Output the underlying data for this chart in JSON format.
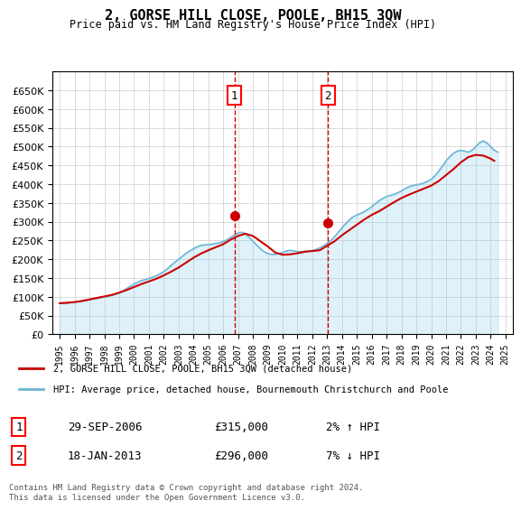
{
  "title": "2, GORSE HILL CLOSE, POOLE, BH15 3QW",
  "subtitle": "Price paid vs. HM Land Registry's House Price Index (HPI)",
  "legend_line1": "2, GORSE HILL CLOSE, POOLE, BH15 3QW (detached house)",
  "legend_line2": "HPI: Average price, detached house, Bournemouth Christchurch and Poole",
  "footnote": "Contains HM Land Registry data © Crown copyright and database right 2024.\nThis data is licensed under the Open Government Licence v3.0.",
  "sale1_label": "1",
  "sale1_date": "29-SEP-2006",
  "sale1_price": "£315,000",
  "sale1_hpi": "2% ↑ HPI",
  "sale2_label": "2",
  "sale2_date": "18-JAN-2013",
  "sale2_price": "£296,000",
  "sale2_hpi": "7% ↓ HPI",
  "hpi_color": "#add8e6",
  "price_color": "#cc0000",
  "sale_marker_color": "#cc0000",
  "dashed_line_color": "#cc0000",
  "background_color": "#ffffff",
  "plot_bg_color": "#ffffff",
  "grid_color": "#cccccc",
  "sale1_x": 2006.75,
  "sale2_x": 2013.05,
  "ylim_min": 0,
  "ylim_max": 700000,
  "yticks": [
    0,
    50000,
    100000,
    150000,
    200000,
    250000,
    300000,
    350000,
    400000,
    450000,
    500000,
    550000,
    600000,
    650000
  ],
  "xlim_min": 1994.5,
  "xlim_max": 2025.5,
  "hpi_data_x": [
    1995,
    1995.25,
    1995.5,
    1995.75,
    1996,
    1996.25,
    1996.5,
    1996.75,
    1997,
    1997.25,
    1997.5,
    1997.75,
    1998,
    1998.25,
    1998.5,
    1998.75,
    1999,
    1999.25,
    1999.5,
    1999.75,
    2000,
    2000.25,
    2000.5,
    2000.75,
    2001,
    2001.25,
    2001.5,
    2001.75,
    2002,
    2002.25,
    2002.5,
    2002.75,
    2003,
    2003.25,
    2003.5,
    2003.75,
    2004,
    2004.25,
    2004.5,
    2004.75,
    2005,
    2005.25,
    2005.5,
    2005.75,
    2006,
    2006.25,
    2006.5,
    2006.75,
    2007,
    2007.25,
    2007.5,
    2007.75,
    2008,
    2008.25,
    2008.5,
    2008.75,
    2009,
    2009.25,
    2009.5,
    2009.75,
    2010,
    2010.25,
    2010.5,
    2010.75,
    2011,
    2011.25,
    2011.5,
    2011.75,
    2012,
    2012.25,
    2012.5,
    2012.75,
    2013,
    2013.25,
    2013.5,
    2013.75,
    2014,
    2014.25,
    2014.5,
    2014.75,
    2015,
    2015.25,
    2015.5,
    2015.75,
    2016,
    2016.25,
    2016.5,
    2016.75,
    2017,
    2017.25,
    2017.5,
    2017.75,
    2018,
    2018.25,
    2018.5,
    2018.75,
    2019,
    2019.25,
    2019.5,
    2019.75,
    2020,
    2020.25,
    2020.5,
    2020.75,
    2021,
    2021.25,
    2021.5,
    2021.75,
    2022,
    2022.25,
    2022.5,
    2022.75,
    2023,
    2023.25,
    2023.5,
    2023.75,
    2024,
    2024.25,
    2024.5
  ],
  "hpi_data_y": [
    83000,
    83500,
    84000,
    85000,
    86000,
    87000,
    88500,
    90000,
    92000,
    94000,
    96000,
    98000,
    100000,
    102000,
    104000,
    107000,
    111000,
    116000,
    122000,
    128000,
    134000,
    139000,
    143000,
    146000,
    149000,
    152000,
    156000,
    161000,
    167000,
    175000,
    184000,
    192000,
    200000,
    208000,
    216000,
    222000,
    228000,
    233000,
    237000,
    238000,
    239000,
    240000,
    242000,
    244000,
    247000,
    252000,
    258000,
    264000,
    270000,
    272000,
    268000,
    258000,
    248000,
    238000,
    228000,
    220000,
    215000,
    213000,
    213000,
    215000,
    218000,
    222000,
    224000,
    222000,
    220000,
    220000,
    221000,
    222000,
    223000,
    226000,
    230000,
    236000,
    242000,
    250000,
    260000,
    272000,
    284000,
    295000,
    305000,
    313000,
    318000,
    322000,
    327000,
    333000,
    340000,
    348000,
    356000,
    362000,
    367000,
    370000,
    373000,
    377000,
    382000,
    388000,
    393000,
    396000,
    398000,
    400000,
    403000,
    407000,
    413000,
    422000,
    434000,
    448000,
    462000,
    473000,
    482000,
    488000,
    490000,
    488000,
    485000,
    490000,
    500000,
    510000,
    515000,
    510000,
    500000,
    490000,
    485000
  ],
  "price_data_x": [
    1995,
    1995.5,
    1996,
    1996.5,
    1997,
    1997.5,
    1998,
    1998.5,
    1999,
    1999.5,
    2000,
    2000.5,
    2001,
    2001.5,
    2002,
    2002.5,
    2003,
    2003.5,
    2004,
    2004.5,
    2005,
    2005.5,
    2006,
    2006.5,
    2007,
    2007.5,
    2008,
    2008.5,
    2009,
    2009.5,
    2010,
    2010.5,
    2011,
    2011.5,
    2012,
    2012.5,
    2013,
    2013.5,
    2014,
    2014.5,
    2015,
    2015.5,
    2016,
    2016.5,
    2017,
    2017.5,
    2018,
    2018.5,
    2019,
    2019.5,
    2020,
    2020.5,
    2021,
    2021.5,
    2022,
    2022.5,
    2023,
    2023.5,
    2024,
    2024.25
  ],
  "price_data_y": [
    83000,
    84000,
    86000,
    89000,
    93000,
    97000,
    101000,
    105000,
    111000,
    118000,
    126000,
    134000,
    141000,
    148000,
    157000,
    167000,
    178000,
    191000,
    204000,
    215000,
    224000,
    232000,
    240000,
    252000,
    262000,
    268000,
    262000,
    248000,
    234000,
    218000,
    212000,
    213000,
    216000,
    220000,
    222000,
    224000,
    236000,
    248000,
    264000,
    278000,
    292000,
    306000,
    318000,
    328000,
    340000,
    352000,
    363000,
    372000,
    380000,
    388000,
    396000,
    408000,
    424000,
    440000,
    458000,
    472000,
    478000,
    476000,
    468000,
    462000
  ]
}
